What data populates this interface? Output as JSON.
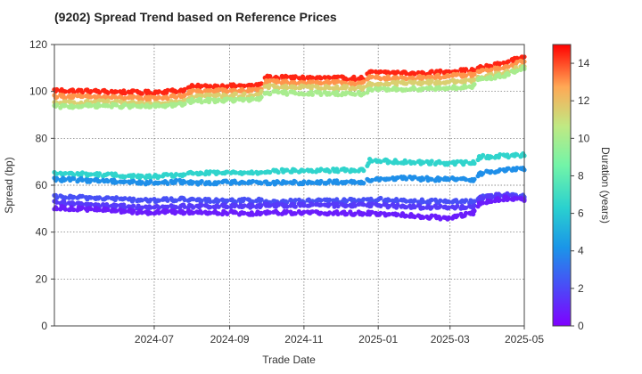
{
  "chart_data": {
    "type": "scatter",
    "title": "(9202)   Spread Trend based on Reference Prices",
    "xlabel": "Trade Date",
    "ylabel": "Spread (bp)",
    "colorbar_label": "Duration (years)",
    "x_range": [
      "2024-04-10",
      "2025-05-01"
    ],
    "ylim": [
      0,
      120
    ],
    "clim": [
      0,
      15
    ],
    "grid": true,
    "x_ticks": [
      {
        "date": "2024-07-01",
        "label": "2024-07"
      },
      {
        "date": "2024-09-01",
        "label": "2024-09"
      },
      {
        "date": "2024-11-01",
        "label": "2024-11"
      },
      {
        "date": "2025-01-01",
        "label": "2025-01"
      },
      {
        "date": "2025-03-01",
        "label": "2025-03"
      },
      {
        "date": "2025-05-01",
        "label": "2025-05"
      }
    ],
    "y_ticks": [
      0,
      20,
      40,
      60,
      80,
      100,
      120
    ],
    "c_ticks": [
      0,
      2,
      4,
      6,
      8,
      10,
      12,
      14
    ],
    "series": [
      {
        "duration": 14.5,
        "points": [
          [
            "2024-04-10",
            100.5
          ],
          [
            "2024-05-15",
            100.0
          ],
          [
            "2024-06-25",
            99.5
          ],
          [
            "2024-07-25",
            100.5
          ],
          [
            "2024-08-01",
            102.0
          ],
          [
            "2024-09-25",
            102.5
          ],
          [
            "2024-10-01",
            106.0
          ],
          [
            "2024-12-20",
            105.5
          ],
          [
            "2024-12-25",
            108.0
          ],
          [
            "2025-01-20",
            108.0
          ],
          [
            "2025-02-05",
            107.5
          ],
          [
            "2025-02-25",
            108.5
          ],
          [
            "2025-03-20",
            109.0
          ],
          [
            "2025-03-25",
            110.0
          ],
          [
            "2025-04-15",
            112.0
          ],
          [
            "2025-05-01",
            115.0
          ]
        ]
      },
      {
        "duration": 13.0,
        "points": [
          [
            "2024-04-10",
            98.0
          ],
          [
            "2024-05-20",
            97.5
          ],
          [
            "2024-06-25",
            97.0
          ],
          [
            "2024-07-25",
            98.0
          ],
          [
            "2024-08-01",
            100.0
          ],
          [
            "2024-09-25",
            100.5
          ],
          [
            "2024-10-01",
            104.0
          ],
          [
            "2024-12-20",
            103.5
          ],
          [
            "2024-12-25",
            106.0
          ],
          [
            "2025-01-20",
            105.5
          ],
          [
            "2025-02-25",
            106.5
          ],
          [
            "2025-03-20",
            107.0
          ],
          [
            "2025-03-25",
            108.5
          ],
          [
            "2025-04-15",
            110.0
          ],
          [
            "2025-05-01",
            113.0
          ]
        ]
      },
      {
        "duration": 11.5,
        "points": [
          [
            "2024-04-10",
            95.0
          ],
          [
            "2024-05-20",
            95.5
          ],
          [
            "2024-06-25",
            94.5
          ],
          [
            "2024-07-25",
            96.0
          ],
          [
            "2024-08-01",
            98.0
          ],
          [
            "2024-09-25",
            98.5
          ],
          [
            "2024-10-01",
            102.0
          ],
          [
            "2024-12-20",
            101.5
          ],
          [
            "2024-12-25",
            103.0
          ],
          [
            "2025-01-20",
            103.5
          ],
          [
            "2025-02-25",
            104.0
          ],
          [
            "2025-03-20",
            104.5
          ],
          [
            "2025-03-25",
            106.0
          ],
          [
            "2025-04-15",
            108.0
          ],
          [
            "2025-05-01",
            111.0
          ]
        ]
      },
      {
        "duration": 10.0,
        "points": [
          [
            "2024-04-10",
            93.5
          ],
          [
            "2024-05-20",
            94.0
          ],
          [
            "2024-06-25",
            93.5
          ],
          [
            "2024-07-25",
            94.5
          ],
          [
            "2024-08-01",
            96.0
          ],
          [
            "2024-09-25",
            96.5
          ],
          [
            "2024-10-01",
            99.5
          ],
          [
            "2024-12-20",
            99.0
          ],
          [
            "2024-12-25",
            100.5
          ],
          [
            "2025-01-20",
            101.0
          ],
          [
            "2025-02-25",
            101.5
          ],
          [
            "2025-03-20",
            102.0
          ],
          [
            "2025-03-25",
            105.0
          ],
          [
            "2025-04-15",
            107.0
          ],
          [
            "2025-05-01",
            110.0
          ]
        ]
      },
      {
        "duration": 6.5,
        "points": [
          [
            "2024-04-10",
            65.0
          ],
          [
            "2024-05-20",
            64.5
          ],
          [
            "2024-06-25",
            63.5
          ],
          [
            "2024-07-25",
            64.5
          ],
          [
            "2024-08-01",
            65.0
          ],
          [
            "2024-09-25",
            65.5
          ],
          [
            "2024-10-01",
            66.0
          ],
          [
            "2024-12-20",
            66.5
          ],
          [
            "2024-12-25",
            70.5
          ],
          [
            "2025-01-20",
            70.0
          ],
          [
            "2025-02-25",
            69.5
          ],
          [
            "2025-03-20",
            69.5
          ],
          [
            "2025-03-25",
            72.0
          ],
          [
            "2025-04-15",
            72.5
          ],
          [
            "2025-05-01",
            73.0
          ]
        ]
      },
      {
        "duration": 4.0,
        "points": [
          [
            "2024-04-10",
            62.5
          ],
          [
            "2024-05-20",
            62.0
          ],
          [
            "2024-06-25",
            61.0
          ],
          [
            "2024-07-25",
            61.5
          ],
          [
            "2024-08-01",
            61.0
          ],
          [
            "2024-09-25",
            61.5
          ],
          [
            "2024-10-01",
            61.0
          ],
          [
            "2024-12-20",
            61.5
          ],
          [
            "2024-12-25",
            62.5
          ],
          [
            "2025-01-20",
            63.0
          ],
          [
            "2025-02-25",
            62.5
          ],
          [
            "2025-03-20",
            62.5
          ],
          [
            "2025-03-25",
            65.0
          ],
          [
            "2025-04-15",
            66.5
          ],
          [
            "2025-05-01",
            67.0
          ]
        ]
      },
      {
        "duration": 2.2,
        "points": [
          [
            "2024-04-10",
            55.0
          ],
          [
            "2024-05-20",
            54.5
          ],
          [
            "2024-06-25",
            53.5
          ],
          [
            "2024-07-25",
            54.0
          ],
          [
            "2024-08-01",
            53.5
          ],
          [
            "2024-09-25",
            53.5
          ],
          [
            "2024-10-01",
            53.0
          ],
          [
            "2024-12-20",
            53.5
          ],
          [
            "2024-12-25",
            54.0
          ],
          [
            "2025-01-20",
            53.5
          ],
          [
            "2025-02-25",
            53.0
          ],
          [
            "2025-03-20",
            53.0
          ],
          [
            "2025-03-25",
            55.0
          ],
          [
            "2025-04-15",
            55.5
          ],
          [
            "2025-05-01",
            55.5
          ]
        ]
      },
      {
        "duration": 1.6,
        "points": [
          [
            "2024-04-10",
            52.5
          ],
          [
            "2024-05-20",
            51.5
          ],
          [
            "2024-06-25",
            50.5
          ],
          [
            "2024-07-25",
            51.0
          ],
          [
            "2024-08-01",
            51.0
          ],
          [
            "2024-09-25",
            51.0
          ],
          [
            "2024-10-01",
            51.5
          ],
          [
            "2024-12-20",
            51.5
          ],
          [
            "2024-12-25",
            51.5
          ],
          [
            "2025-01-20",
            51.0
          ],
          [
            "2025-02-25",
            50.5
          ],
          [
            "2025-03-20",
            50.5
          ],
          [
            "2025-03-25",
            54.5
          ],
          [
            "2025-04-15",
            56.0
          ],
          [
            "2025-05-01",
            54.5
          ]
        ]
      },
      {
        "duration": 0.8,
        "points": [
          [
            "2024-04-10",
            50.5
          ],
          [
            "2024-05-20",
            49.5
          ],
          [
            "2024-06-25",
            48.5
          ],
          [
            "2024-07-25",
            48.5
          ],
          [
            "2024-08-01",
            48.5
          ],
          [
            "2024-09-25",
            48.0
          ],
          [
            "2024-10-01",
            48.5
          ],
          [
            "2024-12-20",
            48.0
          ],
          [
            "2024-12-25",
            48.0
          ],
          [
            "2025-01-20",
            47.5
          ],
          [
            "2025-02-25",
            46.0
          ],
          [
            "2025-03-20",
            48.0
          ],
          [
            "2025-03-25",
            52.0
          ],
          [
            "2025-04-15",
            54.5
          ],
          [
            "2025-05-01",
            54.0
          ]
        ]
      }
    ]
  }
}
